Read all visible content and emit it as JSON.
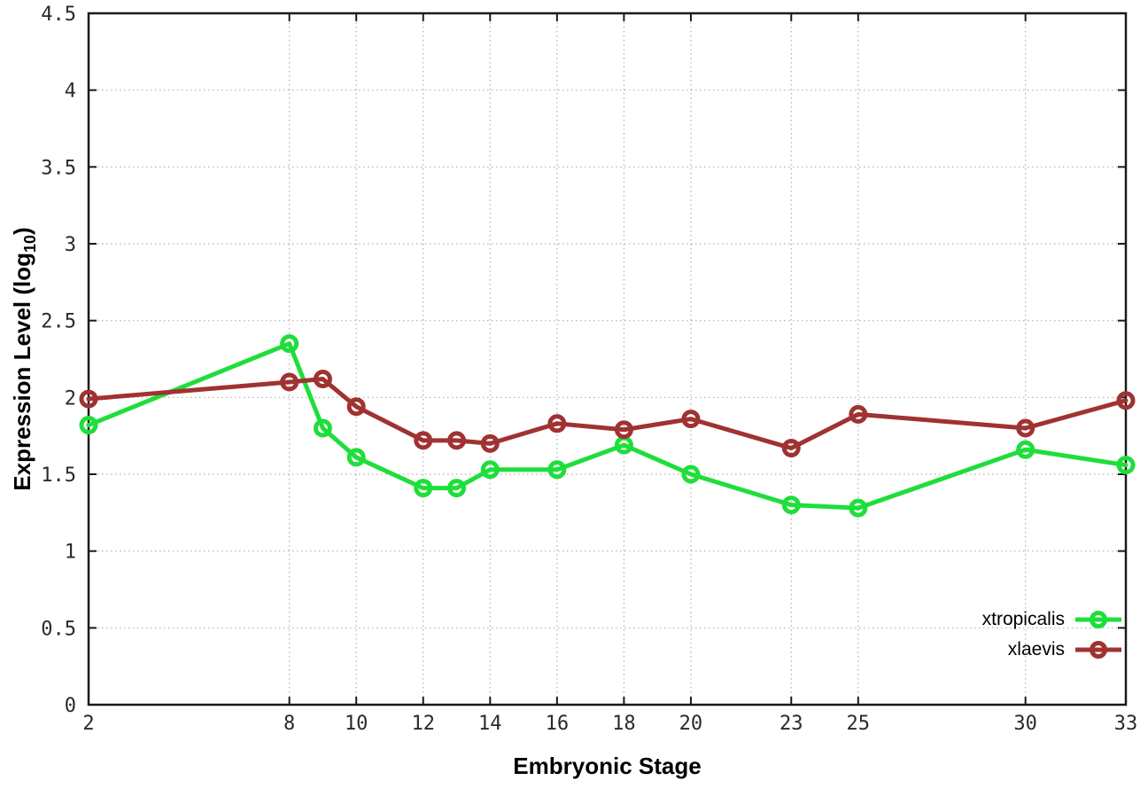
{
  "chart_data": {
    "type": "line",
    "title": "",
    "xlabel": "Embryonic Stage",
    "ylabel": "Expression Level (log10)",
    "ylabel_parts": {
      "main": "Expression Level (log",
      "sub": "10",
      "close": ")"
    },
    "x": [
      2,
      8,
      9,
      10,
      12,
      13,
      14,
      16,
      18,
      20,
      23,
      25,
      30,
      33
    ],
    "series": [
      {
        "name": "xtropicalis",
        "color": "#1FDE3B",
        "values": [
          1.82,
          2.35,
          1.8,
          1.61,
          1.41,
          1.41,
          1.53,
          1.53,
          1.69,
          1.5,
          1.3,
          1.28,
          1.66,
          1.56
        ]
      },
      {
        "name": "xlaevis",
        "color": "#A03232",
        "values": [
          1.99,
          2.1,
          2.12,
          1.94,
          1.72,
          1.72,
          1.7,
          1.83,
          1.79,
          1.86,
          1.67,
          1.89,
          1.8,
          1.98
        ]
      }
    ],
    "xlim": [
      2,
      33
    ],
    "ylim": [
      0,
      4.5
    ],
    "xticks": [
      2,
      8,
      10,
      12,
      14,
      16,
      18,
      20,
      23,
      25,
      30,
      33
    ],
    "xtick_labels": [
      "2",
      "8",
      "10",
      "12",
      "14",
      "16",
      "18",
      "20",
      "23",
      "25",
      "30",
      "33"
    ],
    "yticks": [
      0,
      0.5,
      1,
      1.5,
      2,
      2.5,
      3,
      3.5,
      4,
      4.5
    ],
    "ytick_labels": [
      "0",
      "0.5",
      "1",
      "1.5",
      "2",
      "2.5",
      "3",
      "3.5",
      "4",
      "4.5"
    ],
    "grid": true,
    "grid_style": "dotted",
    "legend_position": "inside-bottom-right",
    "marker": "open-circle",
    "colors": {
      "axis": "#1a1a1a",
      "grid": "#b0b0b0",
      "tick_label": "#2a2a2a",
      "background": "#ffffff"
    }
  }
}
